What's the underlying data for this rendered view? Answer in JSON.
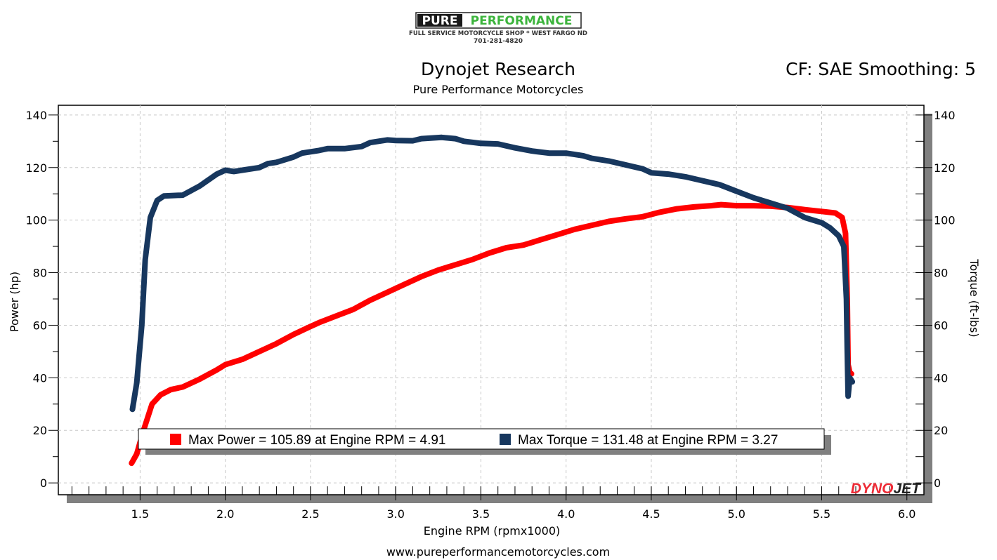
{
  "header": {
    "logo_text_left": "PURE",
    "logo_text_right": "PERFORMANCE",
    "logo_subtitle": "FULL SERVICE MOTORCYCLE SHOP * WEST FARGO ND",
    "logo_phone": "701-281-4820",
    "title": "Dynojet Research",
    "subtitle": "Pure Performance Motorcycles",
    "correction": "CF: SAE Smoothing: 5"
  },
  "footer": {
    "url": "www.pureperformancemotorcycles.com"
  },
  "watermark": {
    "left": "DYNO",
    "right": "JET"
  },
  "chart_data": {
    "type": "line",
    "xlabel": "Engine RPM (rpmx1000)",
    "ylabel": "Power (hp)",
    "y2label": "Torque (ft-lbs)",
    "xlim": [
      1.02,
      6.1
    ],
    "ylim": [
      -4.5,
      143.7
    ],
    "xticks": [
      "1.5",
      "2.0",
      "2.5",
      "3.0",
      "3.5",
      "4.0",
      "4.5",
      "5.0",
      "5.5",
      "6.0"
    ],
    "yticks": [
      "0",
      "20",
      "40",
      "60",
      "80",
      "100",
      "120",
      "140"
    ],
    "y2ticks": [
      "0",
      "20",
      "40",
      "60",
      "80",
      "100",
      "120",
      "140"
    ],
    "grid": true,
    "legend": {
      "placement": "bottom",
      "entries": [
        {
          "label": "Max Power = 105.89 at Engine RPM = 4.91",
          "color": "#ff0000"
        },
        {
          "label": "Max Torque = 131.48 at Engine RPM = 3.27",
          "color": "#17375e"
        }
      ]
    },
    "series": [
      {
        "key": "power",
        "color": "#ff0000",
        "x": [
          1.45,
          1.48,
          1.52,
          1.57,
          1.62,
          1.68,
          1.75,
          1.85,
          1.95,
          2.0,
          2.1,
          2.2,
          2.3,
          2.4,
          2.5,
          2.55,
          2.65,
          2.75,
          2.85,
          2.95,
          3.05,
          3.15,
          3.25,
          3.35,
          3.45,
          3.55,
          3.65,
          3.75,
          3.85,
          3.95,
          4.05,
          4.15,
          4.25,
          4.35,
          4.45,
          4.55,
          4.65,
          4.75,
          4.85,
          4.91,
          5.0,
          5.1,
          5.2,
          5.3,
          5.4,
          5.5,
          5.58,
          5.62,
          5.64,
          5.65,
          5.655,
          5.665,
          5.675
        ],
        "y": [
          7.5,
          11,
          20,
          30,
          33.5,
          35.5,
          36.5,
          39.5,
          43,
          45,
          47,
          50,
          53,
          56.5,
          59.5,
          61,
          63.5,
          66,
          69.5,
          72.5,
          75.5,
          78.5,
          81,
          83,
          85,
          87.5,
          89.5,
          90.5,
          92.5,
          94.5,
          96.5,
          98,
          99.5,
          100.5,
          101.3,
          103,
          104.3,
          105,
          105.5,
          105.89,
          105.5,
          105.5,
          105.3,
          104.8,
          104,
          103.3,
          102.7,
          101,
          95,
          70,
          45,
          42,
          41.5
        ]
      },
      {
        "key": "torque",
        "color": "#17375e",
        "x": [
          1.455,
          1.48,
          1.51,
          1.53,
          1.56,
          1.6,
          1.64,
          1.75,
          1.85,
          1.95,
          2.0,
          2.05,
          2.1,
          2.2,
          2.25,
          2.3,
          2.4,
          2.45,
          2.55,
          2.6,
          2.7,
          2.8,
          2.85,
          2.95,
          3.0,
          3.1,
          3.15,
          3.27,
          3.35,
          3.4,
          3.5,
          3.6,
          3.7,
          3.8,
          3.9,
          4.0,
          4.1,
          4.15,
          4.25,
          4.35,
          4.45,
          4.5,
          4.6,
          4.7,
          4.8,
          4.9,
          5.0,
          5.1,
          5.2,
          5.3,
          5.4,
          5.5,
          5.55,
          5.6,
          5.63,
          5.645,
          5.65,
          5.655,
          5.665,
          5.68
        ],
        "y": [
          28,
          38,
          60,
          85,
          101,
          107.5,
          109.2,
          109.5,
          113,
          117.5,
          119,
          118.5,
          119,
          120,
          121.5,
          122,
          124,
          125.5,
          126.5,
          127.2,
          127.2,
          128,
          129.5,
          130.5,
          130.3,
          130.2,
          131,
          131.48,
          131,
          130,
          129.2,
          129,
          127.5,
          126.3,
          125.5,
          125.5,
          124.5,
          123.5,
          122.5,
          121,
          119.5,
          118,
          117.5,
          116.5,
          115,
          113.5,
          111,
          108.5,
          106.5,
          104.5,
          101,
          99,
          97,
          94,
          90,
          70,
          50,
          33,
          40,
          38.5
        ]
      }
    ]
  }
}
